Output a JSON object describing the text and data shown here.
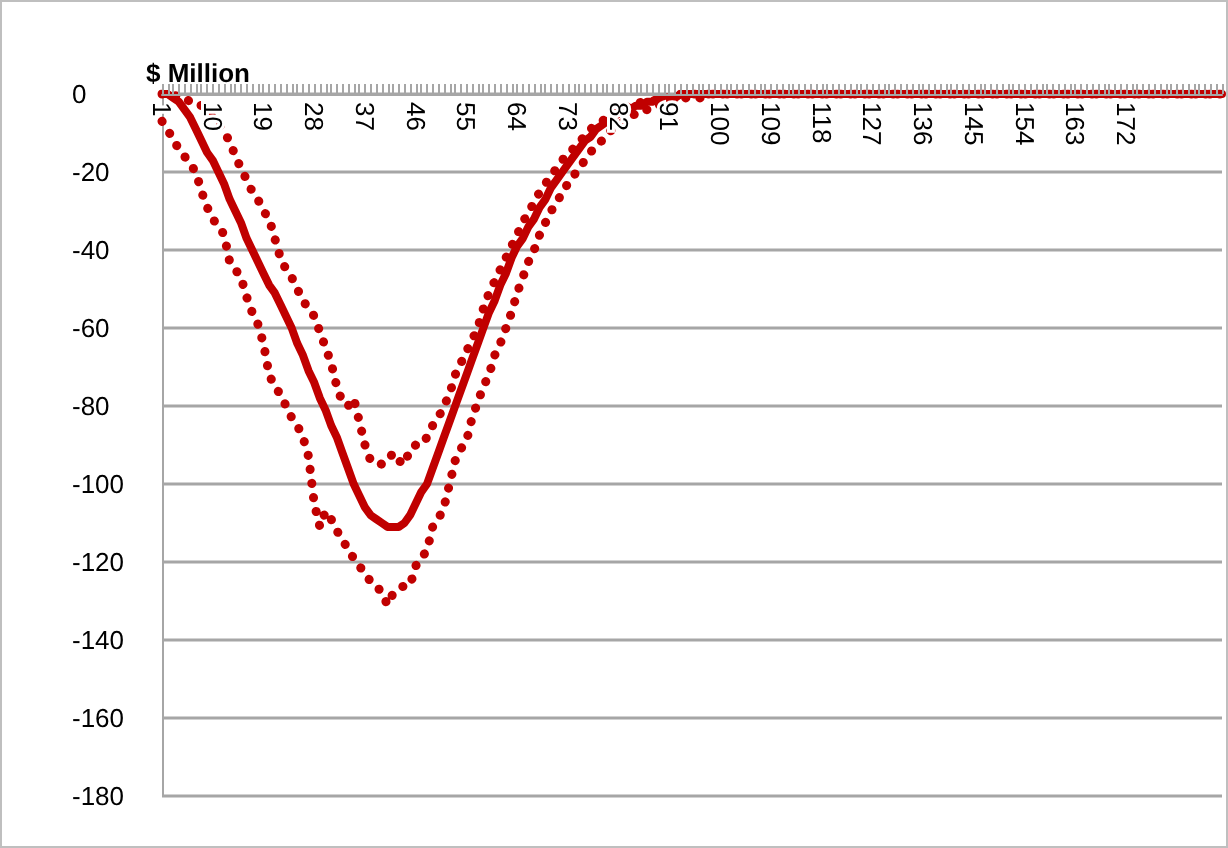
{
  "chart_data": {
    "type": "line",
    "ylabel": "$ Million",
    "categories": [
      "1",
      null,
      null,
      null,
      null,
      null,
      null,
      null,
      null,
      "10",
      null,
      null,
      null,
      null,
      null,
      null,
      null,
      null,
      "19",
      null,
      null,
      null,
      null,
      null,
      null,
      null,
      null,
      "28",
      null,
      null,
      null,
      null,
      null,
      null,
      null,
      null,
      "37",
      null,
      null,
      null,
      null,
      null,
      null,
      null,
      null,
      "46",
      null,
      null,
      null,
      null,
      null,
      null,
      null,
      null,
      "55",
      null,
      null,
      null,
      null,
      null,
      null,
      null,
      null,
      "64",
      null,
      null,
      null,
      null,
      null,
      null,
      null,
      null,
      "73",
      null,
      null,
      null,
      null,
      null,
      null,
      null,
      null,
      "82",
      null,
      null,
      null,
      null,
      null,
      null,
      null,
      null,
      "91",
      null,
      null,
      null,
      null,
      null,
      null,
      null,
      null,
      "100",
      null,
      null,
      null,
      null,
      null,
      null,
      null,
      null,
      "109",
      null,
      null,
      null,
      null,
      null,
      null,
      null,
      null,
      "118",
      null,
      null,
      null,
      null,
      null,
      null,
      null,
      null,
      "127",
      null,
      null,
      null,
      null,
      null,
      null,
      null,
      null,
      "136",
      null,
      null,
      null,
      null,
      null,
      null,
      null,
      null,
      "145",
      null,
      null,
      null,
      null,
      null,
      null,
      null,
      null,
      "154",
      null,
      null,
      null,
      null,
      null,
      null,
      null,
      null,
      "163",
      null,
      null,
      null,
      null,
      null,
      null,
      null,
      null,
      "172",
      null,
      null,
      null,
      null,
      null,
      null,
      null,
      null,
      null,
      null,
      null,
      null,
      null,
      null,
      null,
      null,
      null
    ],
    "series": [
      {
        "color": "#c00000",
        "line_style": "dotted",
        "values": [
          0,
          0,
          0,
          -1,
          -1,
          -2,
          -2,
          -3,
          -4,
          -6,
          -7,
          -10,
          -12,
          -16,
          -19,
          -22,
          -25,
          -27,
          -30,
          -32,
          -37,
          -42,
          -45,
          -47,
          -50,
          -53,
          -55,
          -57,
          -61,
          -65,
          -69,
          -75,
          -79,
          -80,
          -78,
          -84,
          -90,
          -94,
          -94,
          -95,
          -94,
          -92,
          -94,
          -95,
          -91,
          -90,
          -90,
          -88,
          -85,
          -83,
          -80,
          -77,
          -72,
          -69,
          -66,
          -63,
          -60,
          -55,
          -51,
          -48,
          -45,
          -42,
          -39,
          -36,
          -33,
          -30,
          -28,
          -25,
          -23,
          -21,
          -19,
          -17,
          -15,
          -14,
          -12,
          -11,
          -9,
          -8,
          -7,
          -6,
          -5,
          -5,
          -4,
          -3,
          -3,
          -2,
          -2,
          -2,
          -1,
          -1,
          -1,
          -1,
          0,
          0,
          0,
          0,
          0,
          0,
          0,
          0,
          0,
          0,
          0,
          0,
          0,
          0,
          0,
          0,
          0,
          0,
          0,
          0,
          0,
          0,
          0,
          0,
          0,
          0,
          0,
          0,
          0,
          0,
          0,
          0,
          0,
          0,
          0,
          0,
          0,
          0,
          0,
          0,
          0,
          0,
          0,
          0,
          0,
          0,
          0,
          0,
          0,
          0,
          0,
          0,
          0,
          0,
          0,
          0,
          0,
          0,
          0,
          0,
          0,
          0,
          0,
          0,
          0,
          0,
          0,
          0,
          0,
          0,
          0,
          0,
          0,
          0,
          0,
          0,
          0,
          0,
          0,
          0,
          0,
          0,
          0,
          0,
          0,
          0,
          0,
          0,
          0,
          0,
          0,
          0,
          0,
          0,
          0,
          0,
          0
        ]
      },
      {
        "color": "#c00000",
        "line_style": "solid",
        "values": [
          0,
          0,
          -1,
          -2,
          -4,
          -6,
          -9,
          -12,
          -15,
          -17,
          -20,
          -23,
          -27,
          -30,
          -33,
          -37,
          -40,
          -43,
          -46,
          -49,
          -51,
          -54,
          -57,
          -60,
          -64,
          -67,
          -71,
          -74,
          -78,
          -81,
          -85,
          -88,
          -92,
          -96,
          -100,
          -103,
          -106,
          -108,
          -109,
          -110,
          -111,
          -111,
          -111,
          -110,
          -108,
          -105,
          -102,
          -100,
          -96,
          -92,
          -88,
          -84,
          -80,
          -76,
          -72,
          -68,
          -64,
          -60,
          -56,
          -53,
          -49,
          -46,
          -42,
          -39,
          -37,
          -34,
          -32,
          -29,
          -27,
          -24,
          -22,
          -20,
          -18,
          -16,
          -14,
          -12,
          -11,
          -9,
          -8,
          -7,
          -6,
          -5,
          -4,
          -4,
          -3,
          -3,
          -2,
          -2,
          -1,
          -1,
          -1,
          -1,
          0,
          0,
          0,
          0,
          0,
          0,
          0,
          0,
          0,
          0,
          0,
          0,
          0,
          0,
          0,
          0,
          0,
          0,
          0,
          0,
          0,
          0,
          0,
          0,
          0,
          0,
          0,
          0,
          0,
          0,
          0,
          0,
          0,
          0,
          0,
          0,
          0,
          0,
          0,
          0,
          0,
          0,
          0,
          0,
          0,
          0,
          0,
          0,
          0,
          0,
          0,
          0,
          0,
          0,
          0,
          0,
          0,
          0,
          0,
          0,
          0,
          0,
          0,
          0,
          0,
          0,
          0,
          0,
          0,
          0,
          0,
          0,
          0,
          0,
          0,
          0,
          0,
          0,
          0,
          0,
          0,
          0,
          0,
          0,
          0,
          0,
          0,
          0,
          0,
          0,
          0,
          0,
          0,
          0,
          0,
          0,
          0
        ]
      },
      {
        "color": "#c00000",
        "line_style": "dotted",
        "values": [
          -7,
          -9,
          -12,
          -14,
          -16,
          -18,
          -20,
          -25,
          -29,
          -32,
          -34,
          -36,
          -43,
          -45,
          -47,
          -52,
          -56,
          -59,
          -64,
          -72,
          -75,
          -77,
          -80,
          -83,
          -85,
          -88,
          -93,
          -105,
          -111,
          -107,
          -109,
          -112,
          -114,
          -117,
          -119,
          -121,
          -123,
          -125,
          -126,
          -128,
          -131,
          -128,
          -127,
          -126,
          -126,
          -121,
          -119,
          -117,
          -111,
          -109,
          -106,
          -100,
          -94,
          -91,
          -89,
          -83,
          -79,
          -75,
          -72,
          -67,
          -64,
          -60,
          -56,
          -51,
          -47,
          -43,
          -40,
          -36,
          -33,
          -30,
          -28,
          -25,
          -23,
          -21,
          -19,
          -17,
          -15,
          -13,
          -12,
          -10,
          -9,
          -8,
          -7,
          -6,
          -5,
          -5,
          -4,
          -3,
          -3,
          -2,
          -2,
          -2,
          -1,
          -1,
          -1,
          -1,
          -1,
          0,
          0,
          0,
          0,
          0,
          0,
          0,
          0,
          0,
          0,
          0,
          0,
          0,
          0,
          0,
          0,
          0,
          0,
          0,
          0,
          0,
          0,
          0,
          0,
          0,
          0,
          0,
          0,
          0,
          0,
          0,
          0,
          0,
          0,
          0,
          0,
          0,
          0,
          0,
          0,
          0,
          0,
          0,
          0,
          0,
          0,
          0,
          0,
          0,
          0,
          0,
          0,
          0,
          0,
          0,
          0,
          0,
          0,
          0,
          0,
          0,
          0,
          0,
          0,
          0,
          0,
          0,
          0,
          0,
          0,
          0,
          0,
          0,
          0,
          0,
          0,
          0,
          0,
          0,
          0,
          0,
          0,
          0,
          0,
          0,
          0,
          0,
          0,
          0,
          0,
          0,
          0
        ]
      }
    ],
    "ylim": [
      -180,
      0
    ],
    "yticks": [
      0,
      -20,
      -40,
      -60,
      -80,
      -100,
      -120,
      -140,
      -160,
      -180
    ],
    "grid": "y",
    "marker": "none"
  }
}
